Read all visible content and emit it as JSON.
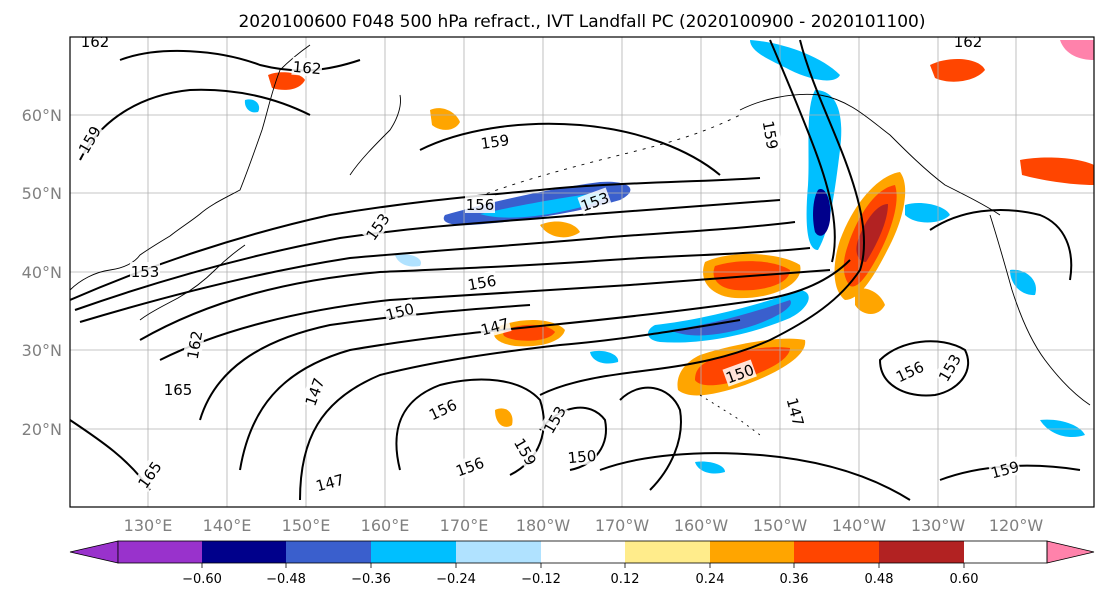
{
  "title": "2020100600 F048 500 hPa refract., IVT Landfall PC (2020100900 - 2020101100)",
  "map": {
    "lat_labels": [
      "60°N",
      "50°N",
      "40°N",
      "30°N",
      "20°N"
    ],
    "lon_labels": [
      "130°E",
      "140°E",
      "150°E",
      "160°E",
      "170°E",
      "180°W",
      "170°W",
      "160°W",
      "150°W",
      "140°W",
      "130°W",
      "120°W"
    ],
    "contour_labels": [
      "162",
      "162",
      "162",
      "159",
      "159",
      "159",
      "156",
      "156",
      "156",
      "156",
      "156",
      "153",
      "153",
      "153",
      "153",
      "153",
      "150",
      "150",
      "150",
      "147",
      "147",
      "147",
      "147",
      "165",
      "165",
      "162",
      "159",
      "159"
    ],
    "contour_color": "#000000",
    "gridlines": true
  },
  "colorbar": {
    "ticks": [
      "−0.60",
      "−0.48",
      "−0.36",
      "−0.24",
      "−0.12",
      "0.12",
      "0.24",
      "0.36",
      "0.48",
      "0.60"
    ],
    "colors": [
      "#9932cc",
      "#00008b",
      "#3a5fcd",
      "#00bfff",
      "#b0e2ff",
      "#ffffff",
      "#ffec8b",
      "#ffa500",
      "#ff4500",
      "#b22222",
      "#ff82ab"
    ]
  }
}
